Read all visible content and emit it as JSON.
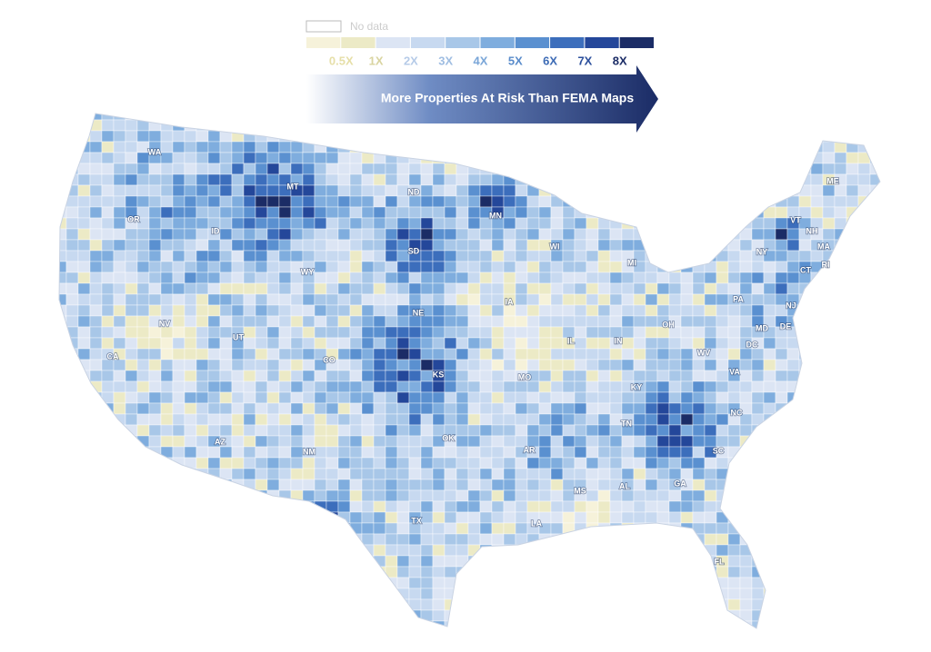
{
  "legend": {
    "no_data": "No data",
    "colors": [
      "#f6f2da",
      "#eceac6",
      "#dce5f4",
      "#c7d9f0",
      "#a8c7e8",
      "#7fadde",
      "#5a90d0",
      "#3c6ebc",
      "#24479a",
      "#1b2c66"
    ],
    "labels": [
      "0.5X",
      "1X",
      "2X",
      "3X",
      "4X",
      "5X",
      "6X",
      "7X",
      "8X"
    ]
  },
  "banner": "More Properties At Risk Than FEMA Maps",
  "state_labels": [
    "WA",
    "OR",
    "ID",
    "MT",
    "ND",
    "MN",
    "WY",
    "SD",
    "WI",
    "MI",
    "NY",
    "VT",
    "NH",
    "ME",
    "MA",
    "RI",
    "CT",
    "NV",
    "UT",
    "CO",
    "NE",
    "IA",
    "IL",
    "IN",
    "OH",
    "PA",
    "NJ",
    "MD",
    "DE",
    "DC",
    "WV",
    "VA",
    "KS",
    "MO",
    "KY",
    "TN",
    "NC",
    "SC",
    "CA",
    "AZ",
    "NM",
    "OK",
    "AR",
    "MS",
    "AL",
    "GA",
    "TX",
    "LA",
    "FL"
  ]
}
